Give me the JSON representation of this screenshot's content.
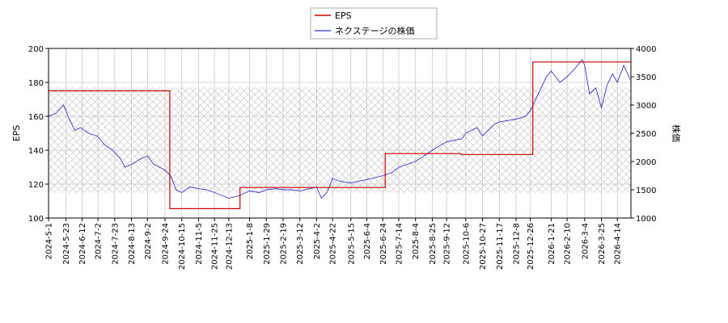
{
  "chart_data": {
    "type": "line",
    "legend": {
      "placement": "top-center",
      "entries": [
        {
          "name": "EPS",
          "color": "#cc0000"
        },
        {
          "name": "ネクステージの株価",
          "color": "#3333cc"
        }
      ]
    },
    "x_tick_labels": [
      "2024-5-1",
      "2024-5-23",
      "2024-6-12",
      "2024-7-2",
      "2024-7-23",
      "2024-8-13",
      "2024-9-2",
      "2024-9-24",
      "2024-10-15",
      "2024-11-5",
      "2024-11-25",
      "2024-12-13",
      "2025-1-8",
      "2025-1-29",
      "2025-2-19",
      "2025-3-12",
      "2025-4-2",
      "2025-4-22",
      "2025-5-15",
      "2025-6-4",
      "2025-6-24",
      "2025-7-14",
      "2025-8-4",
      "2025-8-25",
      "2025-9-12",
      "2025-10-6",
      "2025-10-27",
      "2025-11-17",
      "2025-12-8",
      "2025-12-26",
      "2026-1-21",
      "2026-2-10",
      "2026-3-4",
      "2026-3-25",
      "2026-4-14"
    ],
    "y_left": {
      "label": "EPS",
      "range": [
        100,
        200
      ],
      "ticks": [
        100,
        120,
        140,
        160,
        180,
        200
      ]
    },
    "y_right": {
      "label": "株価",
      "range": [
        1000,
        4000
      ],
      "ticks": [
        1000,
        1500,
        2000,
        2500,
        3000,
        3500,
        4000
      ]
    },
    "eps_series": {
      "name": "EPS",
      "color": "#cc0000",
      "steps": [
        {
          "from": "2024-5-1",
          "to": "2024-9-30",
          "value": 175
        },
        {
          "from": "2024-9-30",
          "to": "2024-12-27",
          "value": 105.5
        },
        {
          "from": "2024-12-27",
          "to": "2025-6-27",
          "value": 118
        },
        {
          "from": "2025-6-27",
          "to": "2025-9-30",
          "value": 138
        },
        {
          "from": "2025-9-30",
          "to": "2025-12-29",
          "value": 137.5
        },
        {
          "from": "2025-12-29",
          "to": "2026-5-1",
          "value": 192
        }
      ]
    },
    "price_series": {
      "name": "ネクステージの株価",
      "color": "#3333cc",
      "points": [
        [
          "2024-5-1",
          2800
        ],
        [
          "2024-5-10",
          2850
        ],
        [
          "2024-5-20",
          3000
        ],
        [
          "2024-5-27",
          2750
        ],
        [
          "2024-6-3",
          2550
        ],
        [
          "2024-6-10",
          2600
        ],
        [
          "2024-6-20",
          2500
        ],
        [
          "2024-7-1",
          2450
        ],
        [
          "2024-7-10",
          2300
        ],
        [
          "2024-7-20",
          2200
        ],
        [
          "2024-7-30",
          2050
        ],
        [
          "2024-8-5",
          1900
        ],
        [
          "2024-8-13",
          1950
        ],
        [
          "2024-8-25",
          2050
        ],
        [
          "2024-9-2",
          2100
        ],
        [
          "2024-9-10",
          1950
        ],
        [
          "2024-9-24",
          1850
        ],
        [
          "2024-10-1",
          1750
        ],
        [
          "2024-10-8",
          1500
        ],
        [
          "2024-10-15",
          1450
        ],
        [
          "2024-10-25",
          1550
        ],
        [
          "2024-11-5",
          1520
        ],
        [
          "2024-11-15",
          1500
        ],
        [
          "2024-11-25",
          1450
        ],
        [
          "2024-12-5",
          1400
        ],
        [
          "2024-12-13",
          1350
        ],
        [
          "2024-12-27",
          1400
        ],
        [
          "2025-1-8",
          1480
        ],
        [
          "2025-1-20",
          1450
        ],
        [
          "2025-1-29",
          1500
        ],
        [
          "2025-2-10",
          1520
        ],
        [
          "2025-2-19",
          1500
        ],
        [
          "2025-3-1",
          1500
        ],
        [
          "2025-3-12",
          1480
        ],
        [
          "2025-3-25",
          1520
        ],
        [
          "2025-4-2",
          1550
        ],
        [
          "2025-4-8",
          1350
        ],
        [
          "2025-4-15",
          1450
        ],
        [
          "2025-4-22",
          1700
        ],
        [
          "2025-5-1",
          1650
        ],
        [
          "2025-5-15",
          1620
        ],
        [
          "2025-6-4",
          1680
        ],
        [
          "2025-6-24",
          1750
        ],
        [
          "2025-7-5",
          1800
        ],
        [
          "2025-7-14",
          1900
        ],
        [
          "2025-8-4",
          2000
        ],
        [
          "2025-8-25",
          2200
        ],
        [
          "2025-9-12",
          2350
        ],
        [
          "2025-10-1",
          2400
        ],
        [
          "2025-10-6",
          2500
        ],
        [
          "2025-10-20",
          2600
        ],
        [
          "2025-10-27",
          2450
        ],
        [
          "2025-11-10",
          2650
        ],
        [
          "2025-11-17",
          2700
        ],
        [
          "2025-12-8",
          2750
        ],
        [
          "2025-12-20",
          2800
        ],
        [
          "2025-12-26",
          2900
        ],
        [
          "2026-1-5",
          3200
        ],
        [
          "2026-1-15",
          3500
        ],
        [
          "2026-1-21",
          3600
        ],
        [
          "2026-2-1",
          3400
        ],
        [
          "2026-2-10",
          3500
        ],
        [
          "2026-2-20",
          3650
        ],
        [
          "2026-3-1",
          3800
        ],
        [
          "2026-3-4",
          3700
        ],
        [
          "2026-3-10",
          3200
        ],
        [
          "2026-3-18",
          3300
        ],
        [
          "2026-3-25",
          2950
        ],
        [
          "2026-4-1",
          3350
        ],
        [
          "2026-4-8",
          3550
        ],
        [
          "2026-4-14",
          3400
        ],
        [
          "2026-4-22",
          3700
        ],
        [
          "2026-4-30",
          3450
        ]
      ]
    },
    "plot_border_color": "#000000",
    "grid_color": "#c8c8c8",
    "hatch_band": {
      "eps_from": 115,
      "eps_to": 177
    }
  }
}
